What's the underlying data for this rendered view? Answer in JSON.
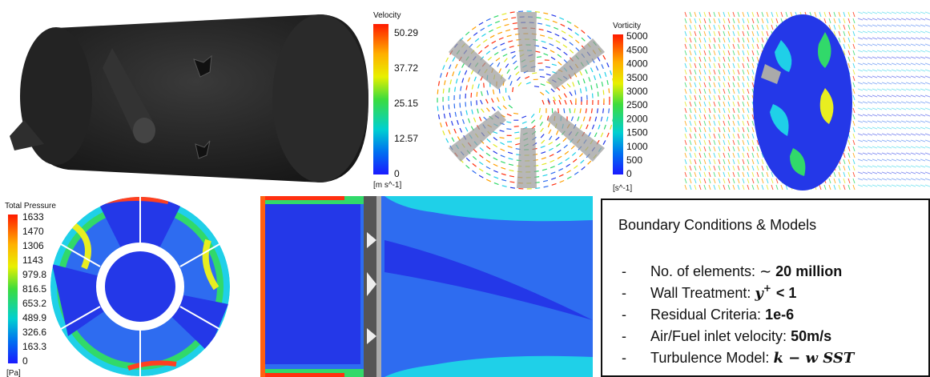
{
  "velocity_legend": {
    "title": "Velocity",
    "ticks": [
      50.29,
      37.72,
      25.15,
      12.57,
      0
    ],
    "unit": "[m s^-1]"
  },
  "vorticity_legend": {
    "title": "Vorticity",
    "ticks": [
      5000,
      4500,
      4000,
      3500,
      3000,
      2500,
      2000,
      1500,
      1000,
      500,
      0
    ],
    "unit": "[s^-1]"
  },
  "pressure_legend": {
    "title": "Total Pressure",
    "ticks": [
      1633,
      1470,
      1306,
      1143,
      979.8,
      816.5,
      653.2,
      489.9,
      326.6,
      163.3,
      0
    ],
    "unit": "[Pa]"
  },
  "info_box": {
    "title": "Boundary Conditions & Models",
    "items": [
      {
        "label": "No. of elements: ∼",
        "value": "20 million"
      },
      {
        "label": "Wall Treatment:",
        "value": "y",
        "sup": "+",
        "rest": "< 1"
      },
      {
        "label": "Residual Criteria:",
        "value": "1e-6"
      },
      {
        "label": "Air/Fuel inlet velocity:",
        "value": "50m/s"
      },
      {
        "label": "Turbulence Model:",
        "value": "k − w SST"
      }
    ]
  }
}
